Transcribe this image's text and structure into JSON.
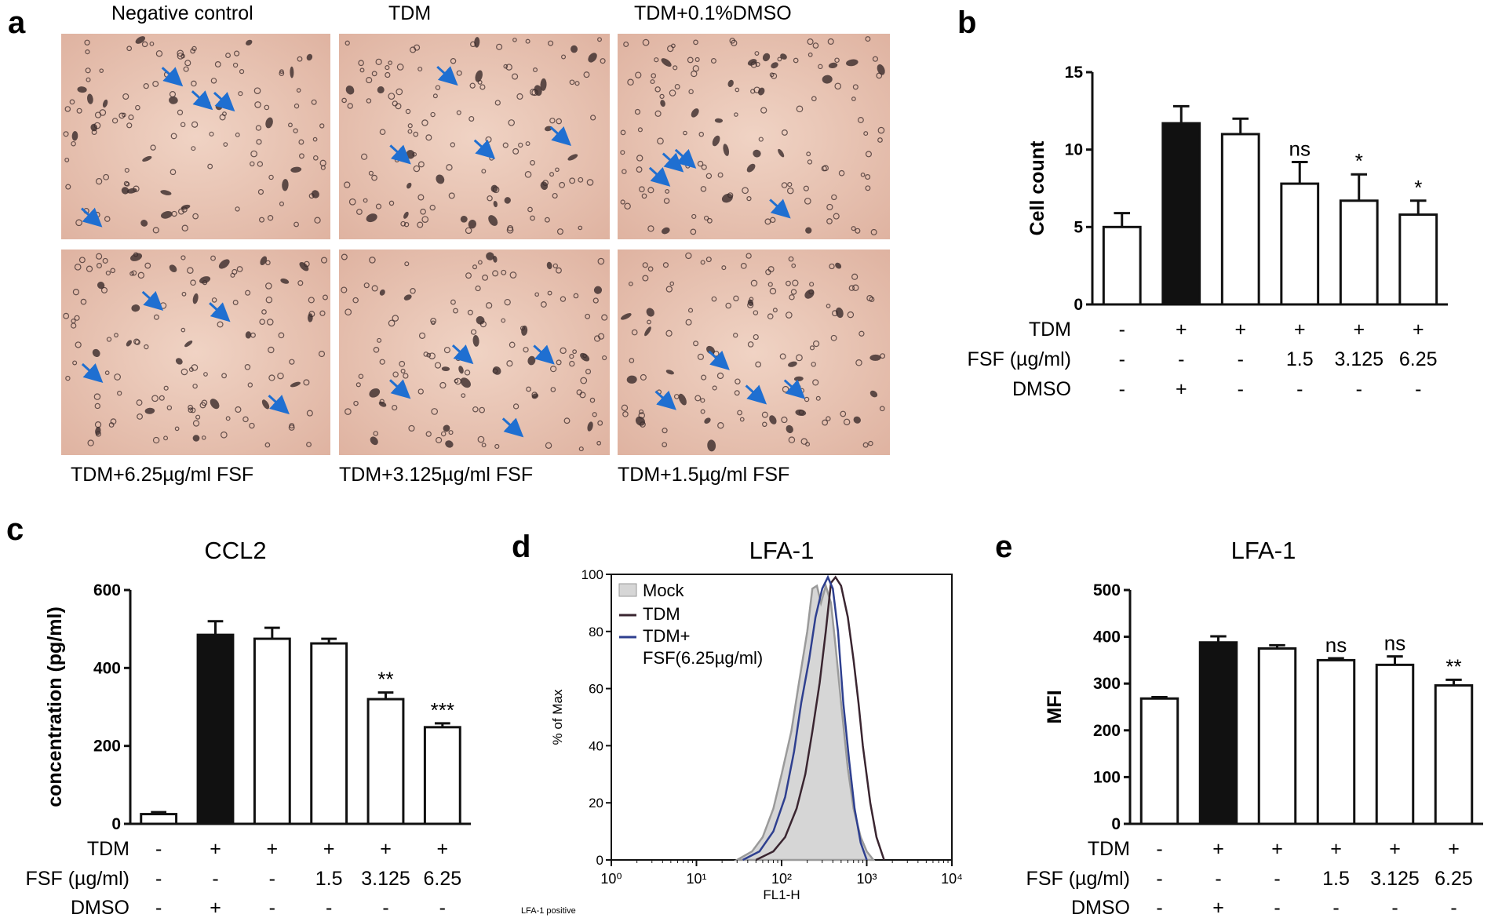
{
  "panel_labels": [
    "a",
    "b",
    "c",
    "d",
    "e"
  ],
  "micrographs": {
    "top_captions": [
      "Negative control",
      "TDM",
      "TDM+0.1%DMSO"
    ],
    "bottom_captions": [
      "TDM+6.25µg/ml FSF",
      "TDM+3.125µg/ml FSF",
      "TDM+1.5µg/ml FSF"
    ],
    "colors": {
      "background": "#e7bfae",
      "cell": "#3a2a2a",
      "arrow": "#1f6fd1"
    }
  },
  "condition_rows": {
    "labels": [
      "TDM",
      "FSF (µg/ml)",
      "DMSO"
    ],
    "tdm": [
      "-",
      "+",
      "+",
      "+",
      "+",
      "+"
    ],
    "fsf": [
      "-",
      "-",
      "-",
      "1.5",
      "3.125",
      "6.25"
    ],
    "dmso": [
      "-",
      "+",
      "-",
      "-",
      "-",
      "-"
    ]
  },
  "chart_data": [
    {
      "panel": "b",
      "type": "bar",
      "title": "",
      "ylabel": "Cell count",
      "ylim": [
        0,
        15
      ],
      "yticks": [
        0,
        5,
        10,
        15
      ],
      "values": [
        5.0,
        11.7,
        11.0,
        7.8,
        6.7,
        5.8
      ],
      "errors": [
        0.9,
        1.1,
        1.0,
        1.4,
        1.7,
        0.9
      ],
      "fills": [
        "white",
        "black",
        "white",
        "white",
        "white",
        "white"
      ],
      "significance": [
        "",
        "",
        "",
        "ns",
        "*",
        "*"
      ]
    },
    {
      "panel": "c",
      "type": "bar",
      "title": "CCL2",
      "ylabel": "concentration (pg/ml)",
      "ylim": [
        0,
        600
      ],
      "yticks": [
        0,
        200,
        400,
        600
      ],
      "values": [
        25,
        485,
        475,
        463,
        320,
        248
      ],
      "errors": [
        5,
        35,
        28,
        12,
        17,
        10
      ],
      "fills": [
        "white",
        "black",
        "white",
        "white",
        "white",
        "white"
      ],
      "significance": [
        "",
        "",
        "",
        "",
        "**",
        "***"
      ]
    },
    {
      "panel": "d",
      "type": "line",
      "title": "LFA-1",
      "xlabel": "FL1-H",
      "ylabel": "% of Max",
      "xscale": "log",
      "xlim": [
        1,
        10000
      ],
      "ylim": [
        0,
        100
      ],
      "xtick_labels": [
        "10⁰",
        "10¹",
        "10²",
        "10³",
        "10⁴"
      ],
      "yticks": [
        0,
        20,
        40,
        60,
        80,
        100
      ],
      "footnote": "LFA-1 positive",
      "series": [
        {
          "name": "Mock",
          "color": "#d6d6d6",
          "stroke": "#9a9a9a",
          "filled": true,
          "x": [
            30,
            45,
            60,
            80,
            100,
            130,
            160,
            200,
            230,
            260,
            290,
            330,
            380,
            430,
            500,
            600,
            700,
            850,
            1000,
            1200
          ],
          "y": [
            0,
            3,
            8,
            18,
            30,
            45,
            62,
            80,
            95,
            96,
            90,
            96,
            90,
            75,
            55,
            32,
            18,
            8,
            3,
            0
          ]
        },
        {
          "name": "TDM",
          "color": "#3a2530",
          "stroke": "#3a2530",
          "filled": false,
          "x": [
            50,
            80,
            110,
            150,
            190,
            230,
            280,
            330,
            380,
            430,
            500,
            600,
            700,
            800,
            900,
            1100,
            1300,
            1600
          ],
          "y": [
            0,
            3,
            8,
            18,
            30,
            45,
            62,
            80,
            97,
            99,
            96,
            85,
            70,
            55,
            40,
            20,
            8,
            0
          ]
        },
        {
          "name": "TDM+\nFSF(6.25µg/ml)",
          "color": "#2e3f8f",
          "stroke": "#2e3f8f",
          "filled": false,
          "x": [
            35,
            55,
            80,
            110,
            140,
            170,
            210,
            250,
            300,
            350,
            400,
            460,
            530,
            620,
            720,
            850,
            1000
          ],
          "y": [
            0,
            3,
            10,
            22,
            38,
            55,
            70,
            85,
            95,
            99,
            95,
            80,
            55,
            35,
            18,
            6,
            0
          ]
        }
      ],
      "legend": [
        "Mock",
        "TDM",
        "TDM+",
        "FSF(6.25µg/ml)"
      ]
    },
    {
      "panel": "e",
      "type": "bar",
      "title": "LFA-1",
      "ylabel": "MFI",
      "ylim": [
        0,
        500
      ],
      "yticks": [
        0,
        100,
        200,
        300,
        400,
        500
      ],
      "values": [
        268,
        388,
        375,
        350,
        340,
        296
      ],
      "errors": [
        3,
        13,
        7,
        4,
        18,
        12
      ],
      "fills": [
        "white",
        "black",
        "white",
        "white",
        "white",
        "white"
      ],
      "significance": [
        "",
        "",
        "",
        "ns",
        "ns",
        "**"
      ]
    }
  ]
}
